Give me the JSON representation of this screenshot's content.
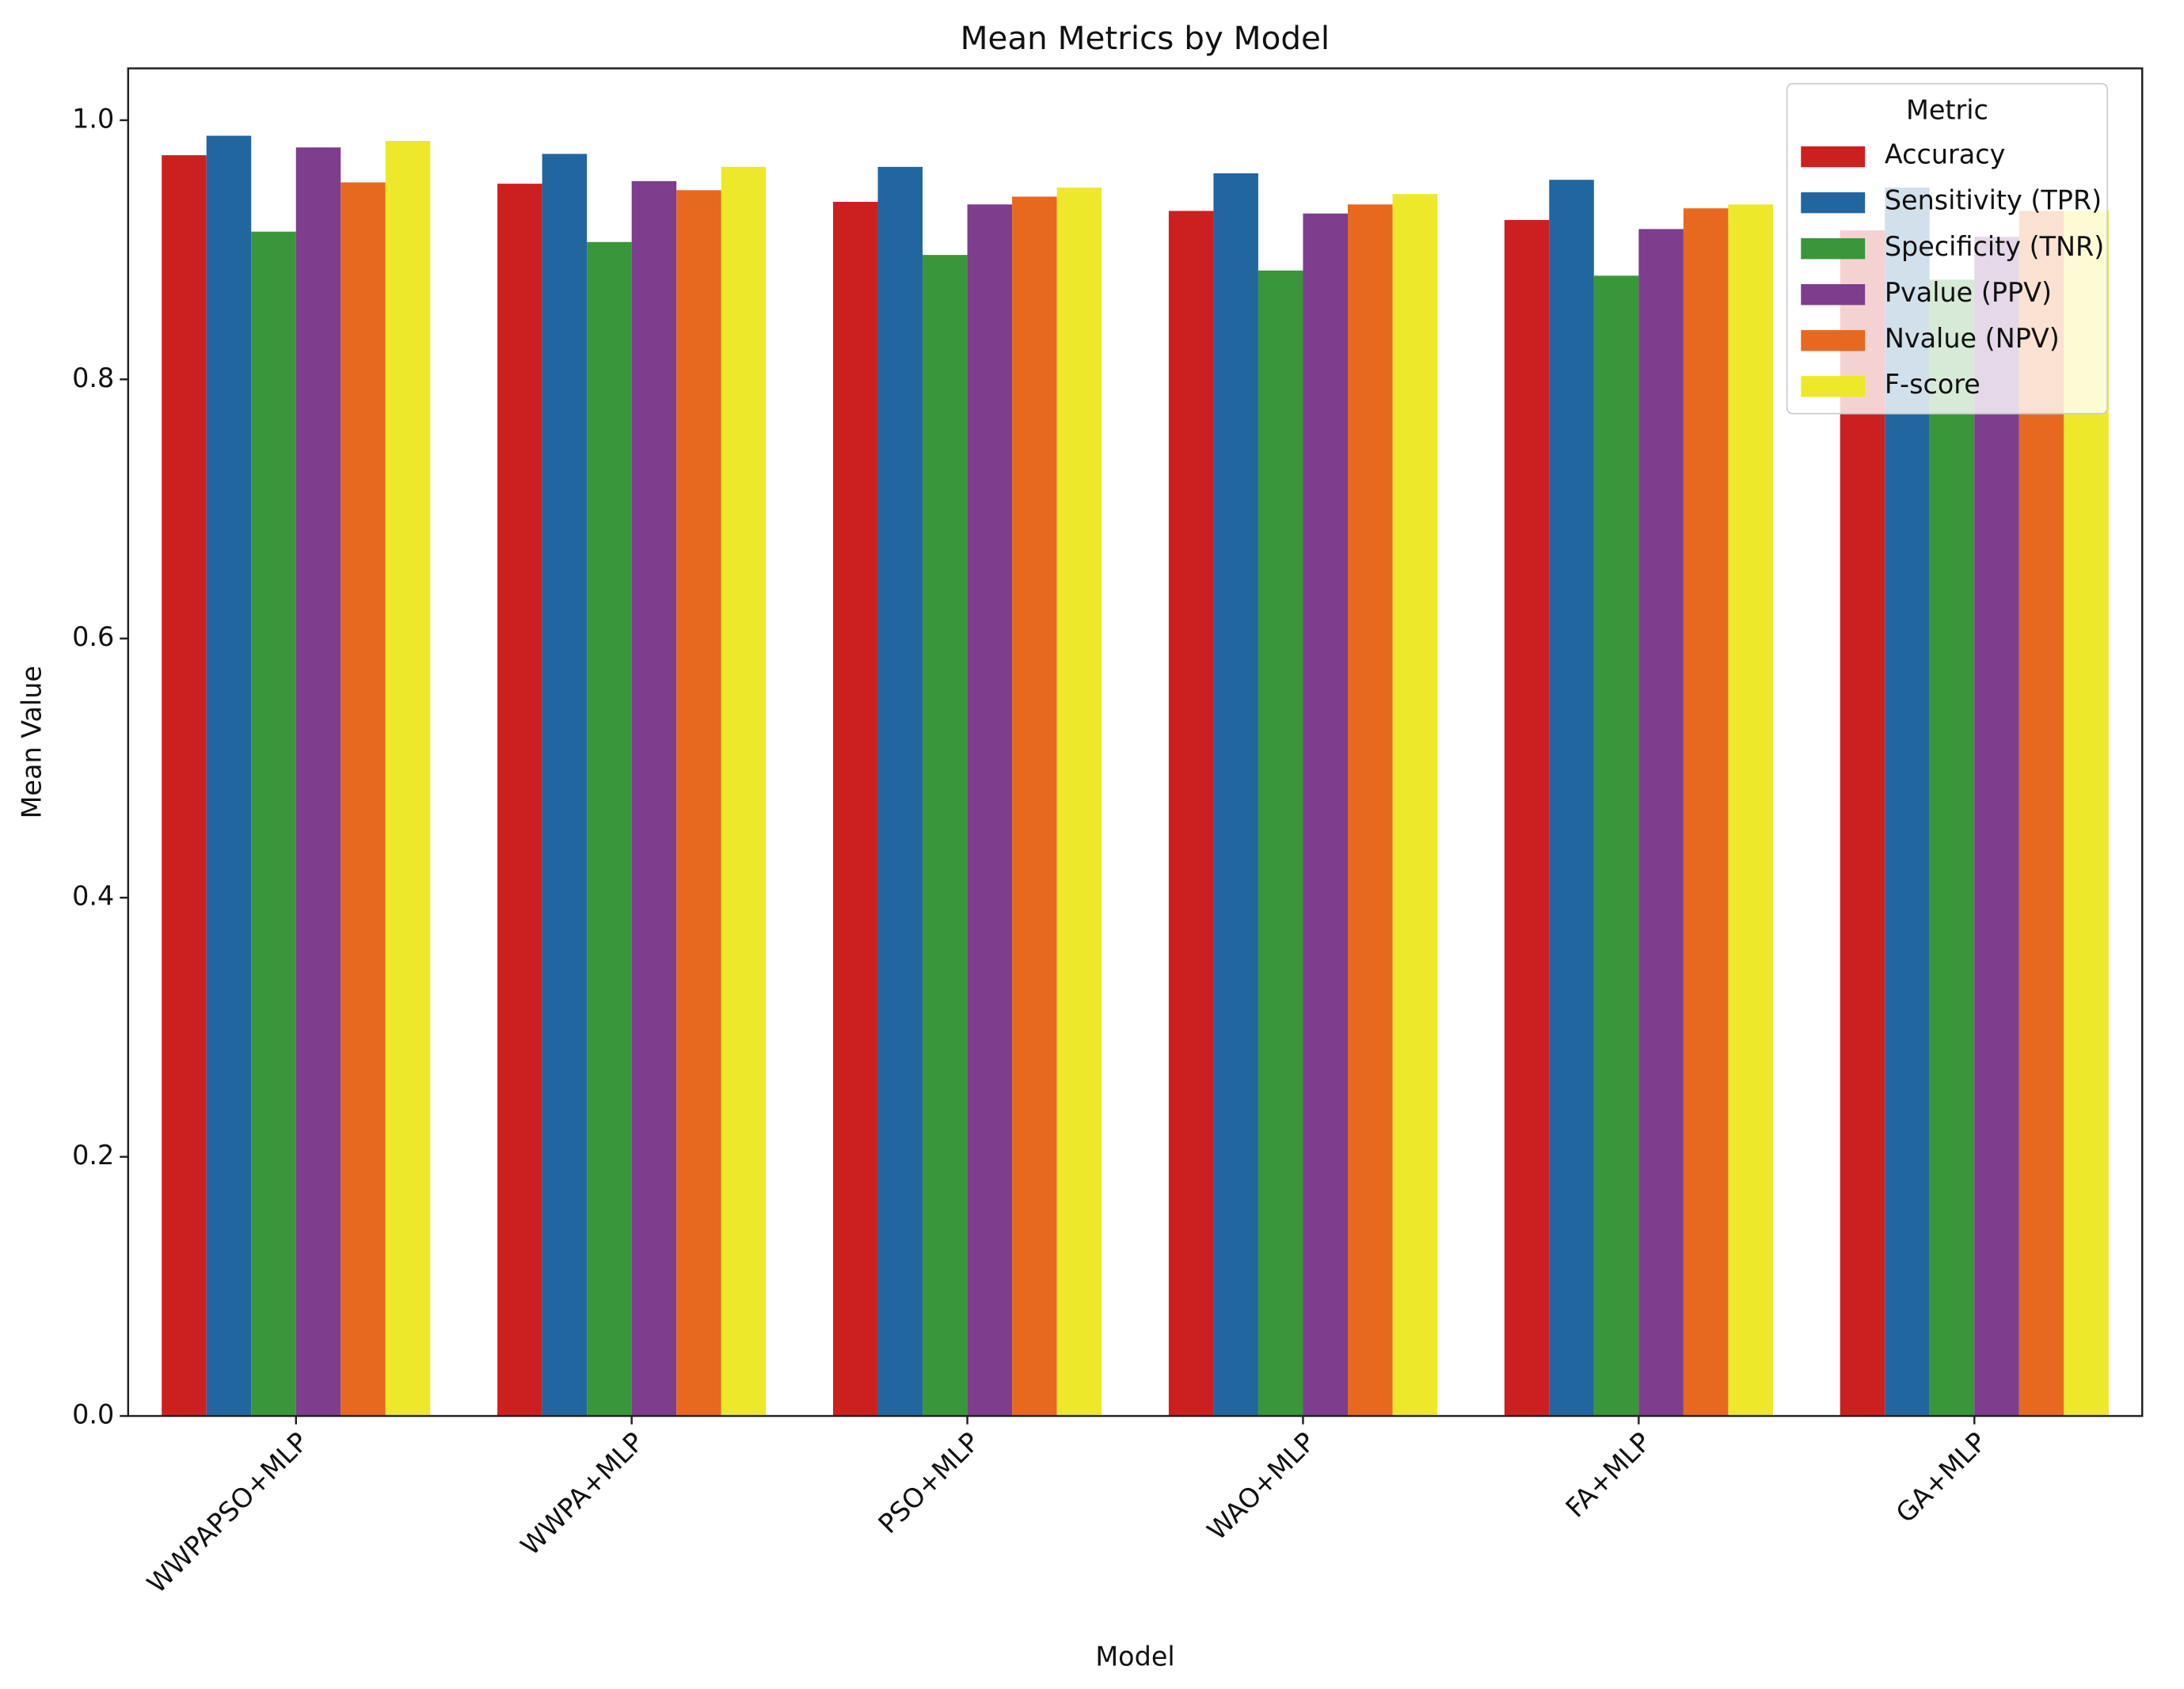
{
  "chart_data": {
    "type": "bar",
    "title": "Mean Metrics by Model",
    "x_label": "Model",
    "y_label": "Mean Value",
    "categories": [
      "WWPAPSO+MLP",
      "WWPA+MLP",
      "PSO+MLP",
      "WAO+MLP",
      "FA+MLP",
      "GA+MLP"
    ],
    "series": [
      {
        "name": "Accuracy",
        "color": "#cc2020",
        "values": [
          0.973,
          0.951,
          0.937,
          0.93,
          0.923,
          0.915
        ]
      },
      {
        "name": "Sensitivity (TPR)",
        "color": "#2266a0",
        "values": [
          0.988,
          0.974,
          0.964,
          0.959,
          0.954,
          0.948
        ]
      },
      {
        "name": "Specificity (TNR)",
        "color": "#3a963a",
        "values": [
          0.914,
          0.906,
          0.896,
          0.884,
          0.88,
          0.877
        ]
      },
      {
        "name": "Pvalue (PPV)",
        "color": "#7e3d8d",
        "values": [
          0.979,
          0.953,
          0.935,
          0.928,
          0.916,
          0.91
        ]
      },
      {
        "name": "Nvalue (NPV)",
        "color": "#e6691f",
        "values": [
          0.952,
          0.946,
          0.941,
          0.935,
          0.932,
          0.93
        ]
      },
      {
        "name": "F-score",
        "color": "#ede92a",
        "values": [
          0.984,
          0.964,
          0.948,
          0.943,
          0.935,
          0.93
        ]
      }
    ],
    "legend_title": "Metric",
    "legend_position": "upper right",
    "ylim": [
      0,
      1.04
    ],
    "yticks": [
      {
        "value": 0,
        "label": "0.0"
      },
      0.2,
      0.4,
      0.6,
      0.8,
      {
        "value": 1,
        "label": "1.0"
      }
    ]
  }
}
